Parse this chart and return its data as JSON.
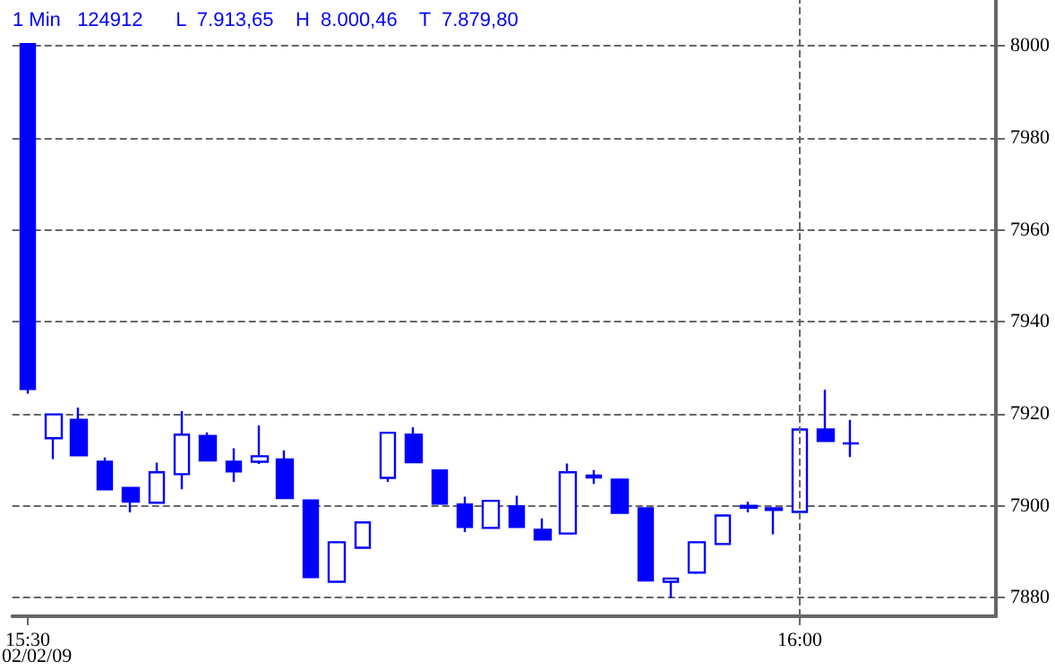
{
  "chart_data": {
    "type": "candlestick",
    "title": "1 Min   124912      L  7.913,65    H  8.000,46    T  7.879,80",
    "x": [
      15.5,
      15.5167,
      15.5333,
      15.55,
      15.5667,
      15.5833,
      15.6,
      15.6167,
      15.6333,
      15.65,
      15.6667,
      15.6833,
      15.7,
      15.7167,
      15.7333,
      15.75,
      15.7667,
      15.7833,
      15.8,
      15.8167,
      15.8333,
      15.85,
      15.8667,
      15.8833,
      15.9,
      15.9167,
      15.9333,
      15.95,
      15.9667,
      15.9833,
      16.0,
      16.0167,
      16.0333
    ],
    "ohlc": [
      [
        8000.4,
        8000.4,
        7924.4,
        7925.4
      ],
      [
        7914.7,
        7919.9,
        7910.2,
        7919.9
      ],
      [
        7918.7,
        7921.4,
        7911.0,
        7911.0
      ],
      [
        7909.6,
        7910.5,
        7903.6,
        7903.6
      ],
      [
        7903.9,
        7903.9,
        7898.6,
        7900.9
      ],
      [
        7900.7,
        7909.4,
        7900.7,
        7907.3
      ],
      [
        7906.9,
        7920.6,
        7903.6,
        7915.5
      ],
      [
        7915.2,
        7916.0,
        7909.9,
        7909.9
      ],
      [
        7909.6,
        7912.5,
        7905.2,
        7907.5
      ],
      [
        7909.6,
        7917.5,
        7909.1,
        7910.8
      ],
      [
        7910.1,
        7912.1,
        7901.7,
        7901.7
      ],
      [
        7901.2,
        7901.2,
        7884.5,
        7884.5
      ],
      [
        7883.5,
        7892.1,
        7883.5,
        7892.1
      ],
      [
        7890.9,
        7896.4,
        7890.9,
        7896.4
      ],
      [
        7906.1,
        7915.9,
        7905.2,
        7915.9
      ],
      [
        7915.5,
        7917.1,
        7909.5,
        7909.5
      ],
      [
        7907.7,
        7907.7,
        7900.5,
        7900.5
      ],
      [
        7900.3,
        7902.0,
        7894.3,
        7895.4
      ],
      [
        7895.2,
        7901.1,
        7895.2,
        7901.1
      ],
      [
        7899.9,
        7902.2,
        7895.4,
        7895.4
      ],
      [
        7894.8,
        7897.3,
        7892.7,
        7892.7
      ],
      [
        7894.0,
        7909.2,
        7894.0,
        7907.3
      ],
      [
        7906.2,
        7907.8,
        7904.8,
        7906.6
      ],
      [
        7905.7,
        7905.7,
        7898.5,
        7898.5
      ],
      [
        7899.5,
        7899.5,
        7883.8,
        7883.8
      ],
      [
        7883.5,
        7884.2,
        7880.0,
        7884.2
      ],
      [
        7885.5,
        7892.1,
        7885.2,
        7892.1
      ],
      [
        7891.7,
        7897.9,
        7891.7,
        7897.9
      ],
      [
        7899.6,
        7900.9,
        7898.6,
        7900.0
      ],
      [
        7899.5,
        7899.5,
        7893.8,
        7899.1
      ],
      [
        7898.7,
        7916.6,
        7898.7,
        7916.6
      ],
      [
        7916.6,
        7925.3,
        7914.1,
        7914.1
      ],
      [
        7913.6,
        7918.7,
        7910.6,
        7913.6
      ]
    ],
    "color": "#0000ff",
    "xlim": [
      15.49,
      16.127
    ],
    "xticks": [
      {
        "value": 15.5,
        "label": "15:30"
      },
      {
        "value": 16,
        "label": "16:00"
      }
    ],
    "ylim": [
      7876,
      8010
    ],
    "yticks": [
      7880,
      7900,
      7920,
      7940,
      7960,
      7980,
      8000
    ],
    "grid": "y",
    "ref_lines": [
      {
        "axis": "x",
        "value": 16,
        "color": "#666666",
        "line_style": "dashed"
      }
    ],
    "annotations": [
      "02/02/09"
    ]
  }
}
